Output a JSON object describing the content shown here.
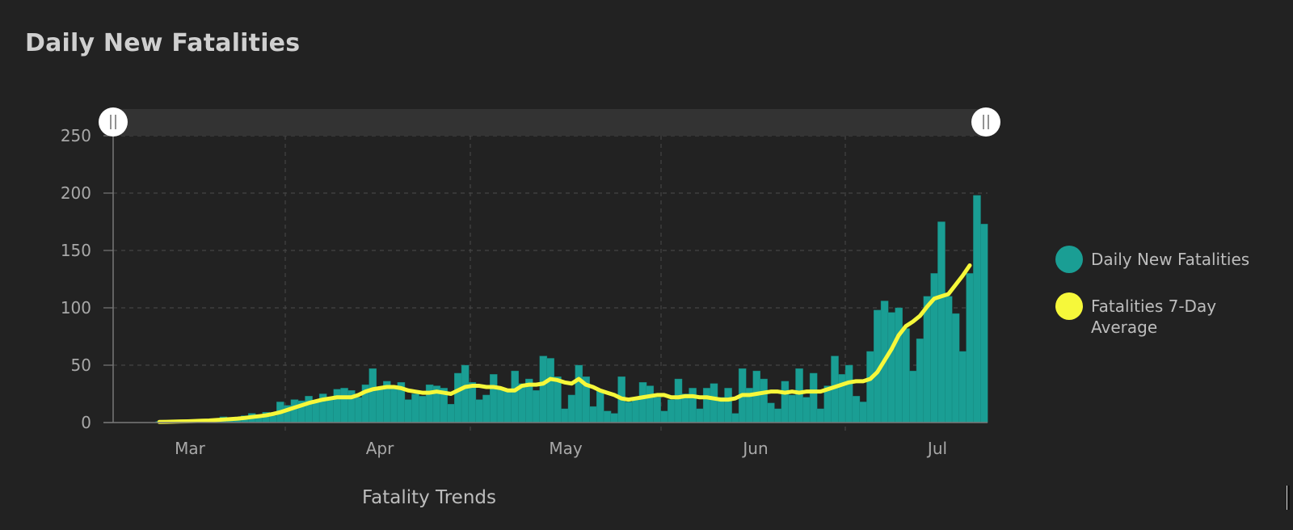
{
  "page": {
    "title": "Daily New Fatalities",
    "footer_label": "Fatality Trends"
  },
  "legend": [
    {
      "label": "Daily New Fatalities",
      "color": "#1a9e94"
    },
    {
      "label": "Fatalities 7-Day Average",
      "color": "#f6f83a"
    }
  ],
  "chart_data": {
    "type": "bar",
    "title": "Daily New Fatalities",
    "xlabel": "",
    "ylabel": "",
    "ylim": [
      0,
      250
    ],
    "yticks": [
      0,
      50,
      100,
      150,
      200,
      250
    ],
    "xticks": [
      "Mar",
      "Apr",
      "May",
      "Jun",
      "Jul"
    ],
    "grid": true,
    "legend_position": "right",
    "bar_color": "#1a9e94",
    "line_color": "#f6f83a",
    "series": [
      {
        "name": "Daily New Fatalities",
        "type": "bar",
        "values": [
          0,
          0,
          0,
          0,
          0,
          0,
          1,
          1,
          1,
          2,
          1,
          2,
          3,
          2,
          3,
          5,
          4,
          3,
          6,
          8,
          7,
          9,
          6,
          18,
          15,
          20,
          19,
          23,
          18,
          25,
          22,
          29,
          30,
          28,
          22,
          33,
          47,
          30,
          36,
          30,
          35,
          20,
          25,
          23,
          33,
          32,
          30,
          16,
          43,
          50,
          35,
          20,
          24,
          42,
          30,
          28,
          45,
          34,
          38,
          28,
          58,
          56,
          40,
          12,
          24,
          50,
          40,
          14,
          28,
          10,
          8,
          40,
          18,
          22,
          35,
          32,
          22,
          10,
          20,
          38,
          25,
          30,
          12,
          30,
          34,
          22,
          30,
          8,
          47,
          30,
          45,
          38,
          17,
          12,
          36,
          24,
          47,
          22,
          43,
          12,
          32,
          58,
          42,
          50,
          23,
          18,
          62,
          98,
          106,
          96,
          100,
          82,
          45,
          73,
          110,
          130,
          175,
          110,
          95,
          62,
          130,
          198,
          173
        ]
      },
      {
        "name": "Fatalities 7-Day Average",
        "type": "line",
        "values": [
          null,
          null,
          null,
          null,
          null,
          null,
          0.5,
          0.6,
          0.8,
          1,
          1.1,
          1.3,
          1.6,
          1.8,
          2.2,
          2.6,
          3,
          3.4,
          4,
          4.8,
          5.5,
          6.3,
          7.5,
          9,
          11,
          13,
          15,
          17,
          18.5,
          20,
          21,
          22,
          22,
          22,
          24,
          27,
          29,
          30,
          31,
          31,
          30,
          28,
          27,
          26,
          26,
          27,
          26,
          25,
          28,
          31,
          32,
          32,
          31,
          31,
          30,
          28,
          28,
          32,
          33,
          33,
          34,
          38,
          37,
          35,
          34,
          38,
          33,
          31,
          28,
          26,
          24,
          21,
          20,
          21,
          22,
          23,
          24,
          24,
          22,
          22,
          23,
          23,
          22,
          22,
          21,
          20,
          20,
          21,
          24,
          24,
          25,
          26,
          27,
          27,
          26,
          27,
          26,
          27,
          27,
          27,
          29,
          31,
          33,
          35,
          36,
          36,
          38,
          44,
          54,
          64,
          76,
          84,
          88,
          93,
          101,
          108,
          110,
          112,
          120,
          128,
          137
        ]
      }
    ]
  }
}
